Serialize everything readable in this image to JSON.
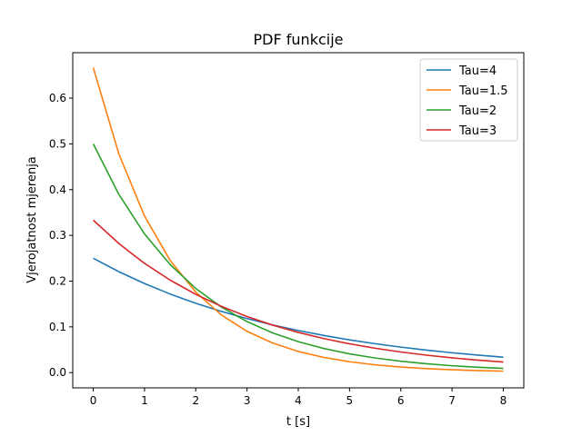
{
  "chart_data": {
    "type": "line",
    "title": "PDF funkcije",
    "xlabel": "t [s]",
    "ylabel": "Vjerojatnost mjerenja",
    "xlim": [
      -0.4,
      8.4
    ],
    "ylim": [
      -0.0333,
      0.6993
    ],
    "xticks": [
      0,
      1,
      2,
      3,
      4,
      5,
      6,
      7,
      8
    ],
    "yticks": [
      0.0,
      0.1,
      0.2,
      0.3,
      0.4,
      0.5,
      0.6
    ],
    "ytick_labels": [
      "0.0",
      "0.1",
      "0.2",
      "0.3",
      "0.4",
      "0.5",
      "0.6"
    ],
    "grid": false,
    "legend_position": "top-right",
    "x": [
      0,
      0.5,
      1,
      1.5,
      2,
      2.5,
      3,
      3.5,
      4,
      4.5,
      5,
      5.5,
      6,
      6.5,
      7,
      7.5,
      8
    ],
    "series": [
      {
        "name": "Tau=4",
        "color": "#1f77b4",
        "values": [
          0.25,
          0.2206,
          0.1947,
          0.1718,
          0.1516,
          0.1338,
          0.1181,
          0.1042,
          0.092,
          0.0812,
          0.0716,
          0.0632,
          0.0558,
          0.0492,
          0.0434,
          0.0383,
          0.0338
        ]
      },
      {
        "name": "Tau=1.5",
        "color": "#ff7f0e",
        "values": [
          0.6667,
          0.4777,
          0.3423,
          0.2453,
          0.1758,
          0.126,
          0.0902,
          0.0647,
          0.0463,
          0.0332,
          0.0238,
          0.0171,
          0.0122,
          0.0088,
          0.0063,
          0.0045,
          0.0032
        ]
      },
      {
        "name": "Tau=2",
        "color": "#2ca02c",
        "values": [
          0.5,
          0.3894,
          0.3033,
          0.2362,
          0.1839,
          0.1433,
          0.1116,
          0.0869,
          0.0677,
          0.0527,
          0.041,
          0.032,
          0.0249,
          0.0194,
          0.0151,
          0.0118,
          0.0092
        ]
      },
      {
        "name": "Tau=3",
        "color": "#d62728",
        "values": [
          0.3333,
          0.2821,
          0.2388,
          0.2022,
          0.1711,
          0.1449,
          0.1226,
          0.1038,
          0.0879,
          0.0744,
          0.063,
          0.0533,
          0.0451,
          0.0382,
          0.0323,
          0.0274,
          0.0232
        ]
      }
    ]
  }
}
